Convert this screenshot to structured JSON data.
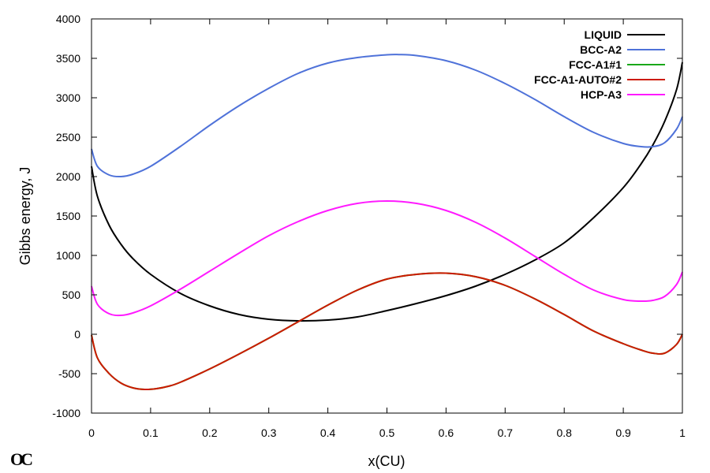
{
  "logo": "OC",
  "chart_data": {
    "type": "line",
    "xlabel": "x(CU)",
    "ylabel": "Gibbs energy, J",
    "xlim": [
      0,
      1
    ],
    "ylim": [
      -1000,
      4000
    ],
    "xticks": [
      0,
      0.1,
      0.2,
      0.3,
      0.4,
      0.5,
      0.6,
      0.7,
      0.8,
      0.9,
      1
    ],
    "xtick_labels": [
      "0",
      "0.1",
      "0.2",
      "0.3",
      "0.4",
      "0.5",
      "0.6",
      "0.7",
      "0.8",
      "0.9",
      "1"
    ],
    "yticks": [
      -1000,
      -500,
      0,
      500,
      1000,
      1500,
      2000,
      2500,
      3000,
      3500,
      4000
    ],
    "ytick_labels": [
      "-1000",
      "-500",
      "0",
      "500",
      "1000",
      "1500",
      "2000",
      "2500",
      "3000",
      "3500",
      "4000"
    ],
    "grid": false,
    "legend_position": "top-right",
    "series": [
      {
        "name": "LIQUID",
        "color": "#000000",
        "x": [
          0,
          0.01,
          0.03,
          0.05,
          0.07,
          0.1,
          0.15,
          0.2,
          0.25,
          0.3,
          0.35,
          0.4,
          0.45,
          0.5,
          0.55,
          0.6,
          0.65,
          0.7,
          0.75,
          0.8,
          0.85,
          0.9,
          0.93,
          0.95,
          0.97,
          0.99,
          1
        ],
        "y": [
          2130,
          1750,
          1380,
          1140,
          960,
          760,
          520,
          360,
          250,
          190,
          170,
          180,
          220,
          300,
          390,
          490,
          610,
          760,
          940,
          1160,
          1480,
          1860,
          2160,
          2400,
          2700,
          3100,
          3450
        ]
      },
      {
        "name": "BCC-A2",
        "color": "#4f72d9",
        "x": [
          0,
          0.01,
          0.03,
          0.05,
          0.07,
          0.1,
          0.15,
          0.2,
          0.25,
          0.3,
          0.35,
          0.4,
          0.45,
          0.5,
          0.52,
          0.55,
          0.6,
          0.65,
          0.7,
          0.75,
          0.8,
          0.85,
          0.9,
          0.93,
          0.95,
          0.97,
          0.99,
          1
        ],
        "y": [
          2350,
          2130,
          2020,
          2000,
          2030,
          2130,
          2380,
          2650,
          2900,
          3120,
          3310,
          3440,
          3510,
          3545,
          3548,
          3535,
          3470,
          3350,
          3180,
          2980,
          2760,
          2560,
          2420,
          2380,
          2380,
          2430,
          2600,
          2760
        ]
      },
      {
        "name": "FCC-A1#1",
        "color": "#1aa81a",
        "x": [
          0,
          0.01,
          0.03,
          0.05,
          0.07,
          0.09,
          0.11,
          0.13,
          0.15,
          0.2,
          0.25,
          0.3,
          0.35,
          0.4,
          0.45,
          0.5,
          0.55,
          0.6,
          0.65,
          0.7,
          0.75,
          0.8,
          0.85,
          0.9,
          0.93,
          0.95,
          0.97,
          0.99,
          1
        ],
        "y": [
          -10,
          -300,
          -500,
          -620,
          -680,
          -700,
          -690,
          -660,
          -610,
          -440,
          -250,
          -50,
          160,
          370,
          560,
          700,
          760,
          775,
          730,
          620,
          450,
          250,
          40,
          -120,
          -200,
          -240,
          -240,
          -130,
          0
        ]
      },
      {
        "name": "FCC-A1-AUTO#2",
        "color": "#cc1a00",
        "x": [
          0,
          0.01,
          0.03,
          0.05,
          0.07,
          0.09,
          0.11,
          0.13,
          0.15,
          0.2,
          0.25,
          0.3,
          0.35,
          0.4,
          0.45,
          0.5,
          0.55,
          0.6,
          0.65,
          0.7,
          0.75,
          0.8,
          0.85,
          0.9,
          0.93,
          0.95,
          0.97,
          0.99,
          1
        ],
        "y": [
          -10,
          -300,
          -500,
          -620,
          -680,
          -700,
          -690,
          -660,
          -610,
          -440,
          -250,
          -50,
          160,
          370,
          560,
          700,
          760,
          775,
          730,
          620,
          450,
          250,
          40,
          -120,
          -200,
          -240,
          -240,
          -130,
          0
        ]
      },
      {
        "name": "HCP-A3",
        "color": "#ff1aff",
        "x": [
          0,
          0.01,
          0.03,
          0.05,
          0.07,
          0.1,
          0.15,
          0.2,
          0.25,
          0.3,
          0.35,
          0.4,
          0.45,
          0.5,
          0.55,
          0.6,
          0.65,
          0.7,
          0.75,
          0.8,
          0.85,
          0.9,
          0.93,
          0.95,
          0.97,
          0.99,
          1
        ],
        "y": [
          610,
          380,
          260,
          240,
          270,
          360,
          570,
          800,
          1030,
          1250,
          1430,
          1570,
          1660,
          1690,
          1660,
          1570,
          1420,
          1220,
          990,
          760,
          560,
          440,
          420,
          430,
          480,
          630,
          790
        ]
      }
    ]
  }
}
